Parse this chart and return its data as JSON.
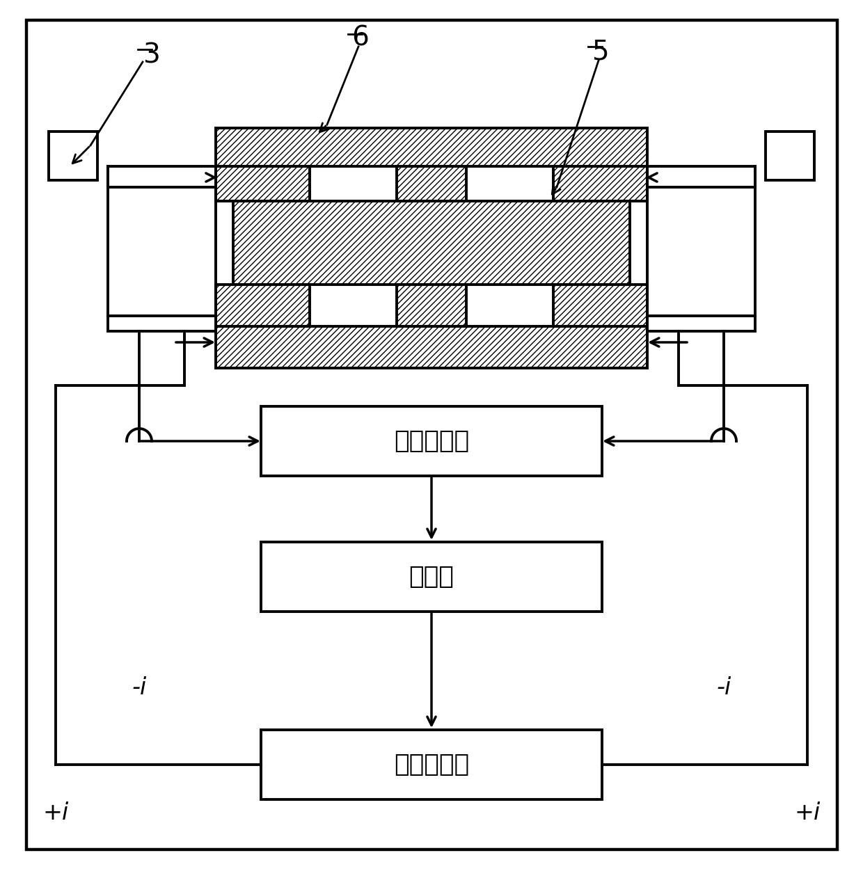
{
  "bg_color": "#ffffff",
  "line_color": "#000000",
  "box_voltage": "电压放大器",
  "box_controller": "控制器",
  "box_power": "功率放大器",
  "label_3": "3",
  "label_6": "6",
  "label_5": "5",
  "label_plus_i_left": "+i",
  "label_plus_i_right": "+i",
  "label_minus_i_left": "-i",
  "label_minus_i_right": "-i",
  "fontsize_chinese": 26,
  "fontsize_labels": 24,
  "fontsize_numbers": 28
}
